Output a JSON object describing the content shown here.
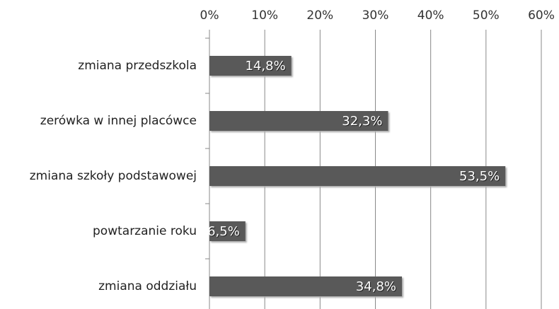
{
  "chart_data": {
    "type": "barh",
    "categories": [
      "zmiana przedszkola",
      "zerówka w innej placówce",
      "zmiana szkoły podstawowej",
      "powtarzanie roku",
      "zmiana oddziału"
    ],
    "values": [
      14.8,
      32.3,
      53.5,
      6.5,
      34.8
    ],
    "value_labels": [
      "14,8%",
      "32,3%",
      "53,5%",
      "6,5%",
      "34,8%"
    ],
    "color": "#595959",
    "xlim": [
      0,
      60
    ],
    "xticks": [
      {
        "value": 0,
        "label": "0%"
      },
      {
        "value": 10,
        "label": "10%"
      },
      {
        "value": 20,
        "label": "20%"
      },
      {
        "value": 30,
        "label": "30%"
      },
      {
        "value": 40,
        "label": "40%"
      },
      {
        "value": 50,
        "label": "50%"
      },
      {
        "value": 60,
        "label": "60%"
      }
    ],
    "grid": true
  }
}
